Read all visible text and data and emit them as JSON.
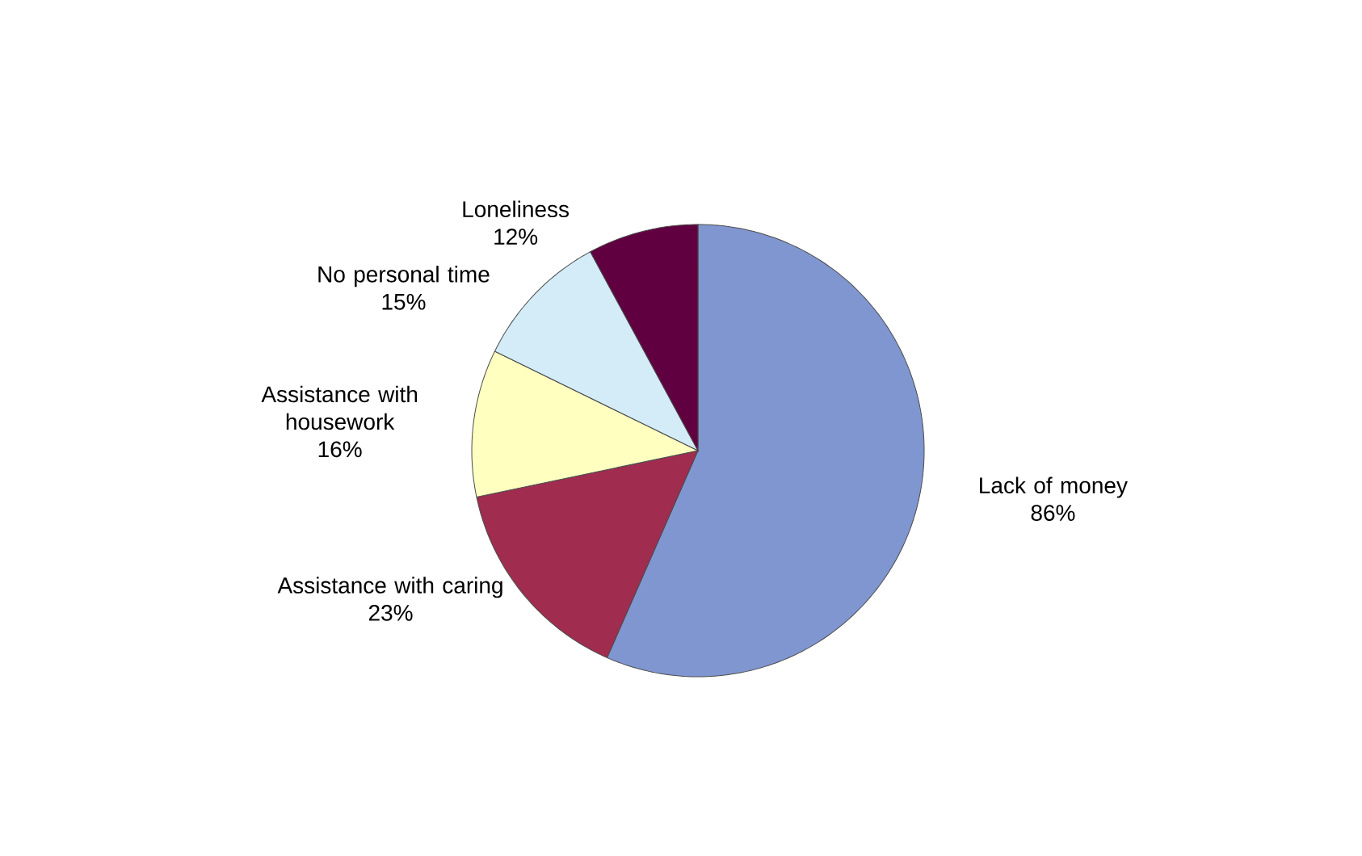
{
  "chart_data": {
    "type": "pie",
    "categories": [
      "Lack of money",
      "Assistance with caring",
      "Assistance with housework",
      "No personal time",
      "Loneliness"
    ],
    "values": [
      86,
      23,
      16,
      15,
      12
    ],
    "value_labels": [
      "86%",
      "23%",
      "16%",
      "15%",
      "12%"
    ],
    "colors": [
      "#8096d0",
      "#a02c50",
      "#ffffc0",
      "#d4ecf8",
      "#600040"
    ]
  }
}
